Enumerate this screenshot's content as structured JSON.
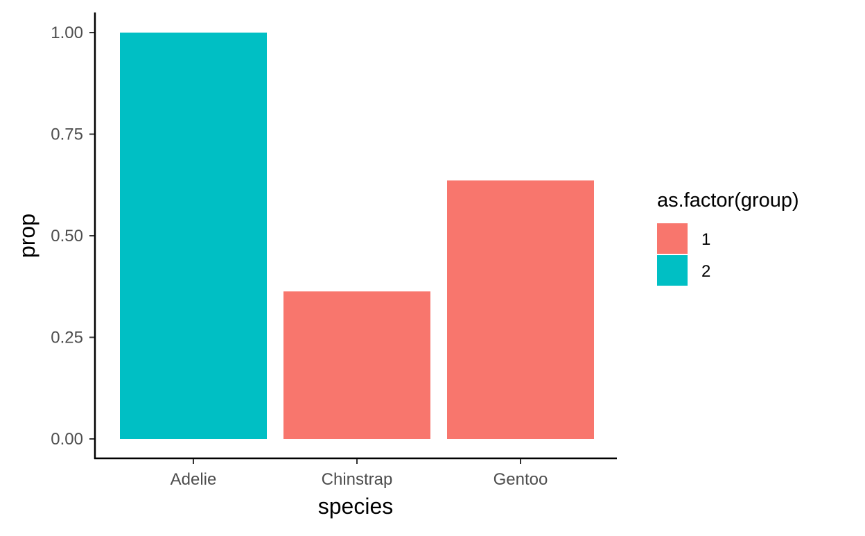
{
  "chart_data": {
    "type": "bar",
    "xlabel": "species",
    "ylabel": "prop",
    "categories": [
      "Adelie",
      "Chinstrap",
      "Gentoo"
    ],
    "values": [
      1.0,
      0.363,
      0.636
    ],
    "groups": [
      "2",
      "1",
      "1"
    ],
    "ylim": [
      0,
      1
    ],
    "yticks": [
      0,
      0.25,
      0.5,
      0.75,
      1
    ],
    "ytick_labels": [
      "0.00",
      "0.25",
      "0.50",
      "0.75",
      "1.00"
    ],
    "grid": false,
    "legend": {
      "title": "as.factor(group)",
      "placement": "right",
      "entries": [
        {
          "label": "1",
          "color": "#F8766D"
        },
        {
          "label": "2",
          "color": "#00BFC4"
        }
      ]
    }
  }
}
